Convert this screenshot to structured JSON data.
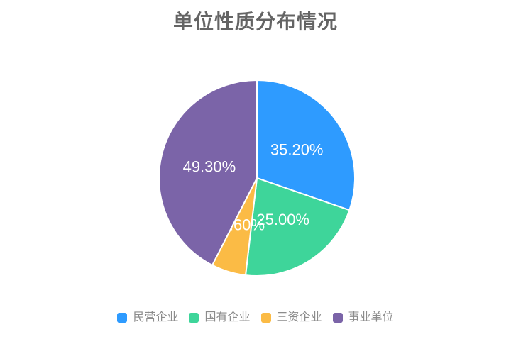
{
  "chart_data": {
    "type": "pie",
    "title": "单位性质分布情况",
    "title_color": "#646464",
    "label_color": "#ffffff",
    "legend_text_color": "#8c8c8c",
    "legend_position": "bottom",
    "start_angle": "top",
    "direction": "clockwise",
    "background": "#ffffff",
    "series": [
      {
        "id": "private-enterprise",
        "name": "民营企业",
        "value": 35.2,
        "label": "35.20%",
        "color": "#2E9BFF"
      },
      {
        "id": "state-owned-enterprise",
        "name": "国有企业",
        "value": 25.0,
        "label": "25.00%",
        "color": "#3ED59A"
      },
      {
        "id": "foreign-funded-enterprise",
        "name": "三资企业",
        "value": 6.6,
        "label": "6.60%",
        "color": "#FBBB45"
      },
      {
        "id": "public-institution",
        "name": "事业单位",
        "value": 49.3,
        "label": "49.30%",
        "color": "#7B64A8"
      }
    ]
  }
}
